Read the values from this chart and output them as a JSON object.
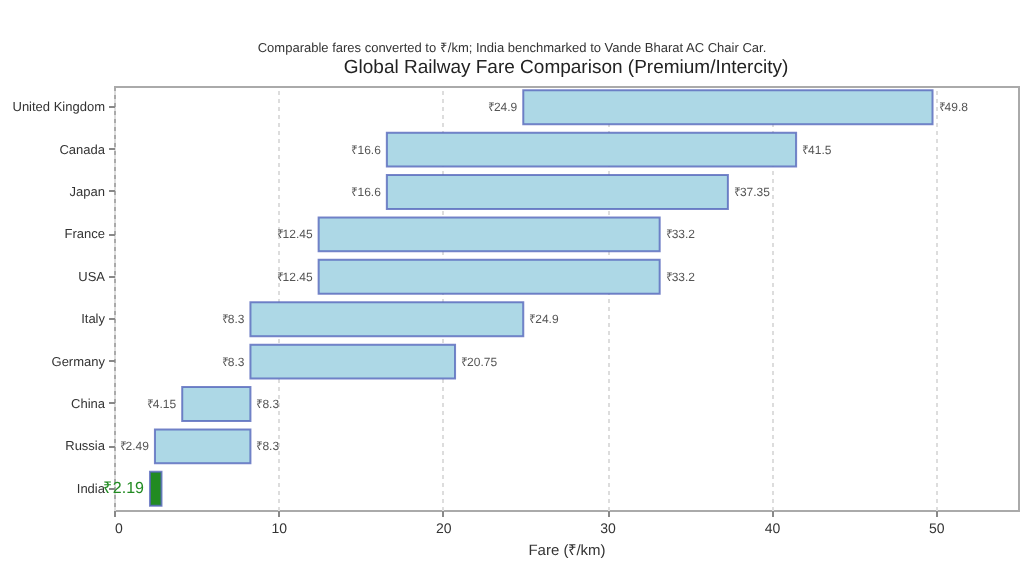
{
  "chart_data": {
    "type": "bar",
    "orientation": "horizontal",
    "title": "Global Railway Fare Comparison (Premium/Intercity)",
    "subtitle": "Comparable fares converted to ₹/km; India benchmarked to Vande Bharat AC Chair Car.",
    "xlabel": "Fare (₹/km)",
    "categories": [
      "United Kingdom",
      "Canada",
      "Japan",
      "France",
      "USA",
      "Italy",
      "Germany",
      "China",
      "Russia",
      "India"
    ],
    "base": [
      24.9,
      16.6,
      16.6,
      12.45,
      12.45,
      8.3,
      8.3,
      4.15,
      2.49,
      2.19
    ],
    "values": [
      24.9,
      24.9,
      20.75,
      20.75,
      20.75,
      16.6,
      12.45,
      4.15,
      5.81,
      0.7
    ],
    "colors": [
      "#add8e6",
      "#add8e6",
      "#add8e6",
      "#add8e6",
      "#add8e6",
      "#add8e6",
      "#add8e6",
      "#add8e6",
      "#add8e6",
      "#228b22"
    ],
    "value_labels": [
      "₹49.8",
      "₹41.5",
      "₹37.35",
      "₹33.2",
      "₹33.2",
      "₹24.9",
      "₹20.75",
      "₹8.3",
      "₹8.3",
      null
    ],
    "annotations": [
      {
        "text": "₹24.9",
        "x": 24.9,
        "y": "United Kingdom"
      },
      {
        "text": "₹16.6",
        "x": 16.6,
        "y": "Canada"
      },
      {
        "text": "₹16.6",
        "x": 16.6,
        "y": "Japan"
      },
      {
        "text": "₹12.45",
        "x": 12.45,
        "y": "France"
      },
      {
        "text": "₹12.45",
        "x": 12.45,
        "y": "USA"
      },
      {
        "text": "₹8.3",
        "x": 8.3,
        "y": "Italy"
      },
      {
        "text": "₹8.3",
        "x": 8.3,
        "y": "Germany"
      },
      {
        "text": "₹4.15",
        "x": 4.15,
        "y": "China"
      },
      {
        "text": "₹2.49",
        "x": 2.49,
        "y": "Russia"
      },
      {
        "text": "₹2.19",
        "x": 2.19,
        "y": "India"
      }
    ],
    "xlim": [
      0,
      55
    ],
    "xticks": [
      0,
      10,
      20,
      30,
      40,
      50
    ],
    "grid": "x"
  }
}
